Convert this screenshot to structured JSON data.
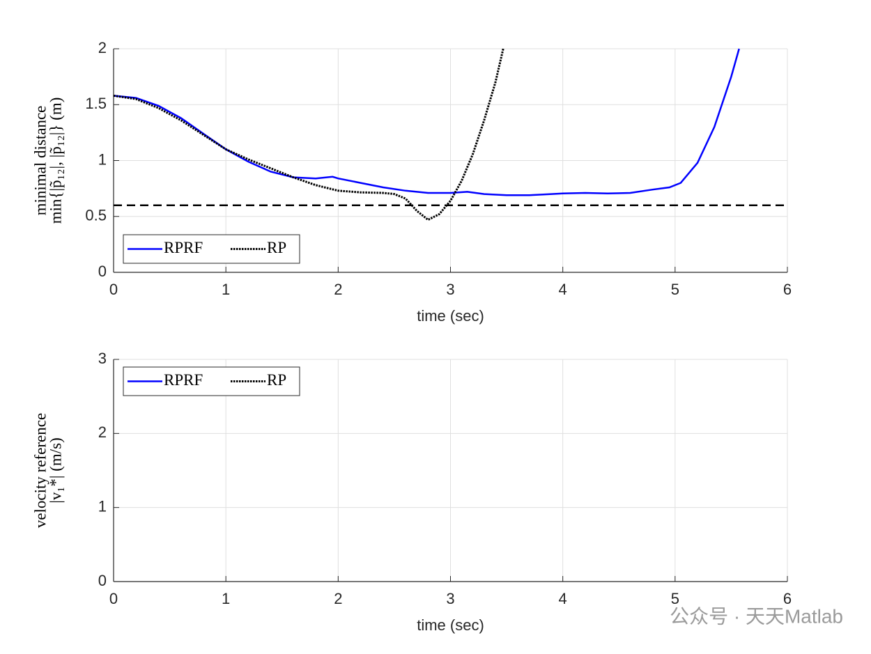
{
  "chart_data": [
    {
      "type": "line",
      "ylabel": [
        "minimal distance",
        "min{|p̃₁₂|, |p̃₁₂|} (m)"
      ],
      "xlabel": "time (sec)",
      "xlim": [
        0,
        6
      ],
      "xticks": [
        0,
        1,
        2,
        3,
        4,
        5,
        6
      ],
      "ylim": [
        0,
        2
      ],
      "yticks": [
        0,
        0.5,
        1,
        1.5,
        2
      ],
      "grid": true,
      "legend": "lower left",
      "hlines": [
        0.6
      ],
      "series": [
        {
          "name": "RPRF",
          "color": "#0000ff",
          "style": "solid",
          "x": [
            0,
            0.2,
            0.4,
            0.6,
            0.8,
            1.0,
            1.2,
            1.4,
            1.6,
            1.8,
            1.95,
            2.0,
            2.2,
            2.4,
            2.6,
            2.8,
            3.0,
            3.15,
            3.3,
            3.5,
            3.7,
            3.9,
            4.0,
            4.2,
            4.4,
            4.6,
            4.8,
            4.95,
            5.05,
            5.2,
            5.35,
            5.5,
            5.57
          ],
          "values": [
            1.58,
            1.56,
            1.49,
            1.38,
            1.24,
            1.1,
            0.99,
            0.9,
            0.85,
            0.84,
            0.855,
            0.84,
            0.8,
            0.76,
            0.73,
            0.71,
            0.71,
            0.72,
            0.7,
            0.69,
            0.69,
            0.7,
            0.705,
            0.71,
            0.705,
            0.71,
            0.74,
            0.76,
            0.8,
            0.98,
            1.3,
            1.75,
            2.0
          ]
        },
        {
          "name": "RP",
          "color": "#000000",
          "style": "dotted",
          "x": [
            0,
            0.2,
            0.4,
            0.6,
            0.8,
            1.0,
            1.2,
            1.4,
            1.6,
            1.8,
            2.0,
            2.2,
            2.4,
            2.5,
            2.6,
            2.7,
            2.8,
            2.9,
            3.0,
            3.1,
            3.2,
            3.3,
            3.4,
            3.47
          ],
          "values": [
            1.58,
            1.55,
            1.47,
            1.36,
            1.23,
            1.1,
            1.01,
            0.93,
            0.85,
            0.78,
            0.73,
            0.715,
            0.71,
            0.7,
            0.66,
            0.55,
            0.47,
            0.52,
            0.64,
            0.82,
            1.06,
            1.36,
            1.7,
            2.0
          ]
        }
      ]
    },
    {
      "type": "line",
      "ylabel": [
        "velocity reference",
        "|v₁*| (m/s)"
      ],
      "xlabel": "time (sec)",
      "xlim": [
        0,
        6
      ],
      "xticks": [
        0,
        1,
        2,
        3,
        4,
        5,
        6
      ],
      "ylim": [
        0,
        3
      ],
      "yticks": [
        0,
        1,
        2,
        3
      ],
      "grid": true,
      "legend": "upper left",
      "series": [
        {
          "name": "RPRF",
          "color": "#0000ff",
          "style": "solid",
          "x": [],
          "values": []
        },
        {
          "name": "RP",
          "color": "#000000",
          "style": "dotted",
          "x": [],
          "values": []
        }
      ]
    }
  ],
  "watermark": "公众号 · 天天Matlab"
}
